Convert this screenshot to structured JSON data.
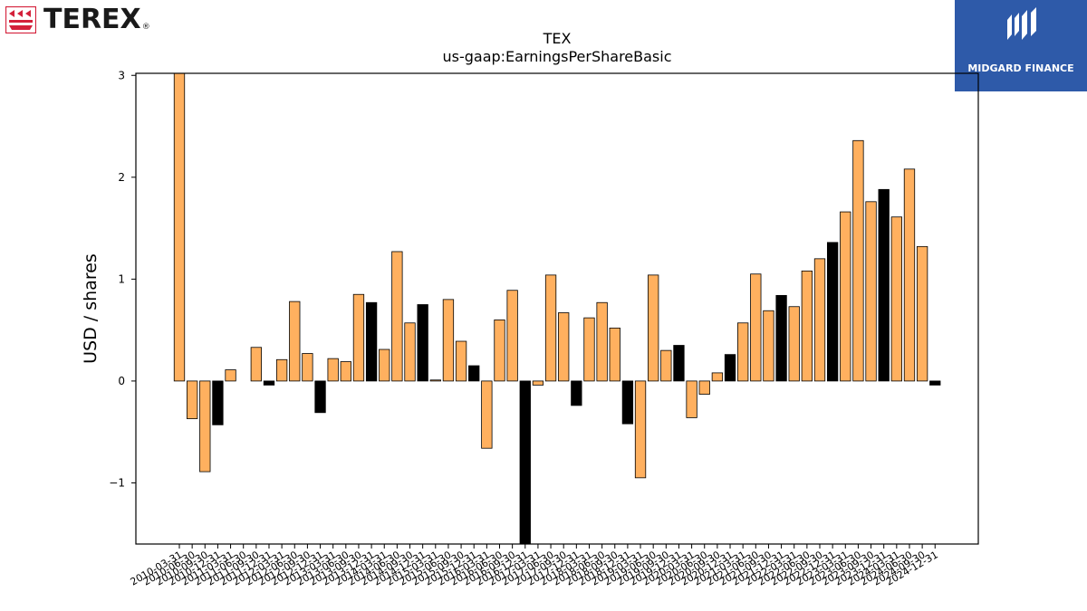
{
  "branding": {
    "left_logo_text": "TEREX",
    "left_logo_registered": "®",
    "right_logo_text": "MIDGARD FINANCE",
    "left_logo_color": "#d4203a",
    "right_logo_color": "#2e5aa9"
  },
  "chart_data": {
    "type": "bar",
    "title": "TEX",
    "subtitle": "us-gaap:EarningsPerShareBasic",
    "ylabel": "USD / shares",
    "xlabel": "",
    "ylim": [
      -1.6,
      3.02
    ],
    "yticks": [
      -1,
      0,
      1,
      2,
      3
    ],
    "yticklabels": [
      "−1",
      "0",
      "1",
      "2",
      "3"
    ],
    "grid": false,
    "colors": {
      "quarter": "#ffb05f",
      "annual": "#000000",
      "edge": "#000000"
    },
    "categories": [
      "2010-03-31",
      "2010-06-30",
      "2010-09-30",
      "2010-12-31",
      "2011-03-31",
      "2011-06-30",
      "2011-09-30",
      "2011-12-31",
      "2012-03-31",
      "2012-06-30",
      "2012-09-30",
      "2012-12-31",
      "2013-03-31",
      "2013-06-30",
      "2013-09-30",
      "2013-12-31",
      "2014-03-31",
      "2014-06-30",
      "2014-09-30",
      "2014-12-31",
      "2015-03-31",
      "2015-06-30",
      "2015-09-30",
      "2015-12-31",
      "2016-03-31",
      "2016-06-30",
      "2016-09-30",
      "2016-12-31",
      "2017-03-31",
      "2017-06-30",
      "2017-09-30",
      "2017-12-31",
      "2018-03-31",
      "2018-06-30",
      "2018-09-30",
      "2018-12-31",
      "2019-03-31",
      "2019-06-30",
      "2019-09-30",
      "2019-12-31",
      "2020-03-31",
      "2020-06-30",
      "2020-09-30",
      "2020-12-31",
      "2021-03-31",
      "2021-06-30",
      "2021-09-30",
      "2021-12-31",
      "2022-03-31",
      "2022-06-30",
      "2022-09-30",
      "2022-12-31",
      "2023-03-31",
      "2023-06-30",
      "2023-09-30",
      "2023-12-31",
      "2024-03-31",
      "2024-06-30",
      "2024-09-30",
      "2024-12-31"
    ],
    "values": [
      3.02,
      -0.37,
      -0.89,
      -0.43,
      0.11,
      0.0,
      0.33,
      -0.04,
      0.21,
      0.78,
      0.27,
      -0.31,
      0.22,
      0.19,
      0.85,
      0.77,
      0.31,
      1.27,
      0.57,
      0.75,
      0.01,
      0.8,
      0.39,
      0.15,
      -0.66,
      0.6,
      0.89,
      -1.6,
      -0.04,
      1.04,
      0.67,
      -0.24,
      0.62,
      0.77,
      0.52,
      -0.42,
      -0.95,
      1.04,
      0.3,
      0.35,
      -0.36,
      -0.13,
      0.08,
      0.26,
      0.57,
      1.05,
      0.69,
      0.84,
      0.73,
      1.08,
      1.2,
      1.36,
      1.66,
      2.36,
      1.76,
      1.88,
      1.61,
      2.08,
      1.32,
      -0.04
    ],
    "annual_flags": [
      0,
      0,
      0,
      1,
      0,
      0,
      0,
      1,
      0,
      0,
      0,
      1,
      0,
      0,
      0,
      1,
      0,
      0,
      0,
      1,
      0,
      0,
      0,
      1,
      0,
      0,
      0,
      1,
      0,
      0,
      0,
      1,
      0,
      0,
      0,
      1,
      0,
      0,
      0,
      1,
      0,
      0,
      0,
      1,
      0,
      0,
      0,
      1,
      0,
      0,
      0,
      1,
      0,
      0,
      0,
      1,
      0,
      0,
      0,
      1
    ]
  }
}
